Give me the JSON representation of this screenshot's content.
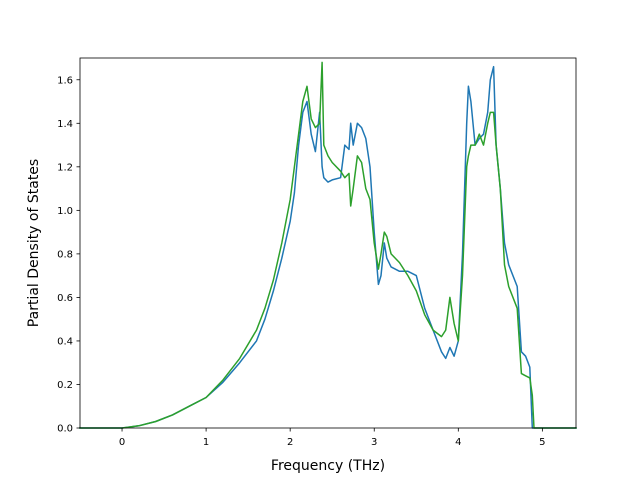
{
  "chart_data": {
    "type": "line",
    "title": "",
    "xlabel": "Frequency (THz)",
    "ylabel": "Partial Density of States",
    "xlim": [
      -0.5,
      5.4
    ],
    "ylim": [
      0.0,
      1.7
    ],
    "xticks": [
      0,
      1,
      2,
      3,
      4,
      5
    ],
    "yticks": [
      0.0,
      0.2,
      0.4,
      0.6,
      0.8,
      1.0,
      1.2,
      1.4,
      1.6
    ],
    "grid": false,
    "legend": "none",
    "series": [
      {
        "color": "#1f77b4",
        "x": [
          -0.5,
          0.0,
          0.2,
          0.4,
          0.6,
          0.8,
          1.0,
          1.2,
          1.4,
          1.6,
          1.7,
          1.8,
          1.9,
          2.0,
          2.05,
          2.1,
          2.15,
          2.2,
          2.25,
          2.3,
          2.35,
          2.38,
          2.4,
          2.45,
          2.5,
          2.6,
          2.65,
          2.7,
          2.72,
          2.75,
          2.8,
          2.85,
          2.9,
          2.95,
          3.0,
          3.05,
          3.08,
          3.12,
          3.15,
          3.2,
          3.3,
          3.4,
          3.5,
          3.6,
          3.7,
          3.8,
          3.85,
          3.9,
          3.95,
          4.0,
          4.05,
          4.1,
          4.12,
          4.15,
          4.2,
          4.25,
          4.3,
          4.35,
          4.38,
          4.42,
          4.45,
          4.5,
          4.55,
          4.6,
          4.7,
          4.75,
          4.8,
          4.85,
          4.88,
          4.9,
          4.92,
          5.0,
          5.4
        ],
        "y": [
          0.0,
          0.0,
          0.01,
          0.03,
          0.06,
          0.1,
          0.14,
          0.21,
          0.3,
          0.4,
          0.5,
          0.63,
          0.78,
          0.95,
          1.08,
          1.3,
          1.45,
          1.5,
          1.35,
          1.27,
          1.45,
          1.2,
          1.15,
          1.13,
          1.14,
          1.15,
          1.3,
          1.28,
          1.4,
          1.3,
          1.4,
          1.38,
          1.33,
          1.2,
          0.9,
          0.66,
          0.7,
          0.85,
          0.78,
          0.74,
          0.72,
          0.72,
          0.7,
          0.55,
          0.45,
          0.35,
          0.32,
          0.37,
          0.33,
          0.4,
          0.8,
          1.4,
          1.57,
          1.5,
          1.3,
          1.33,
          1.35,
          1.45,
          1.6,
          1.66,
          1.3,
          1.1,
          0.85,
          0.75,
          0.65,
          0.35,
          0.33,
          0.28,
          0.0,
          0.0,
          0.0,
          0.0,
          0.0
        ]
      },
      {
        "color": "#2ca02c",
        "x": [
          -0.5,
          0.0,
          0.2,
          0.4,
          0.6,
          0.8,
          1.0,
          1.2,
          1.4,
          1.6,
          1.7,
          1.8,
          1.9,
          2.0,
          2.05,
          2.1,
          2.15,
          2.2,
          2.25,
          2.3,
          2.35,
          2.38,
          2.4,
          2.45,
          2.5,
          2.6,
          2.65,
          2.7,
          2.72,
          2.75,
          2.8,
          2.85,
          2.9,
          2.95,
          3.0,
          3.05,
          3.08,
          3.12,
          3.15,
          3.2,
          3.3,
          3.4,
          3.5,
          3.6,
          3.7,
          3.8,
          3.85,
          3.9,
          3.95,
          4.0,
          4.05,
          4.1,
          4.12,
          4.15,
          4.2,
          4.25,
          4.3,
          4.35,
          4.38,
          4.42,
          4.45,
          4.5,
          4.55,
          4.6,
          4.7,
          4.75,
          4.8,
          4.85,
          4.88,
          4.9,
          4.92,
          5.0,
          5.4
        ],
        "y": [
          0.0,
          0.0,
          0.01,
          0.03,
          0.06,
          0.1,
          0.14,
          0.22,
          0.32,
          0.45,
          0.55,
          0.68,
          0.85,
          1.05,
          1.2,
          1.35,
          1.5,
          1.57,
          1.42,
          1.38,
          1.4,
          1.68,
          1.3,
          1.25,
          1.22,
          1.18,
          1.15,
          1.17,
          1.02,
          1.1,
          1.25,
          1.22,
          1.1,
          1.05,
          0.85,
          0.73,
          0.8,
          0.9,
          0.88,
          0.8,
          0.76,
          0.7,
          0.63,
          0.52,
          0.45,
          0.42,
          0.45,
          0.6,
          0.48,
          0.4,
          0.7,
          1.2,
          1.25,
          1.3,
          1.3,
          1.35,
          1.3,
          1.4,
          1.45,
          1.45,
          1.3,
          1.1,
          0.75,
          0.65,
          0.55,
          0.25,
          0.24,
          0.23,
          0.15,
          0.0,
          0.0,
          0.0,
          0.0
        ]
      }
    ]
  }
}
